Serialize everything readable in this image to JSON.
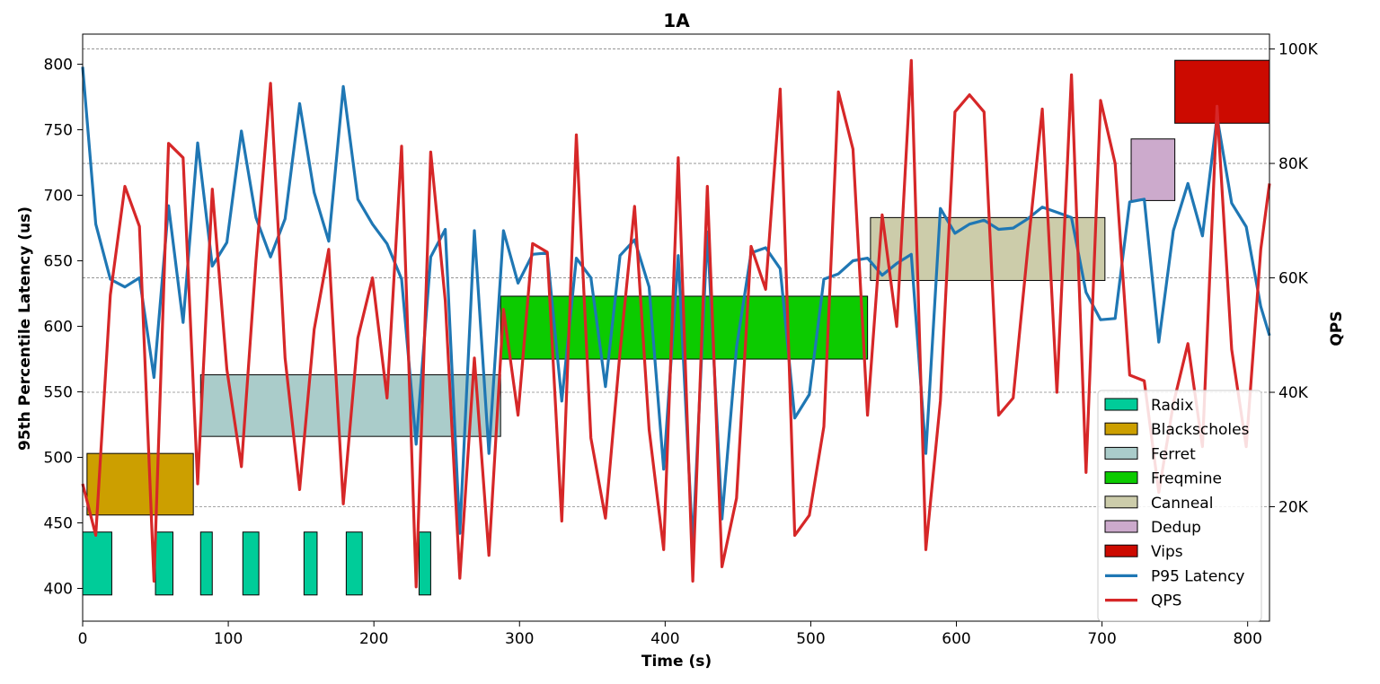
{
  "chart_data": {
    "type": "line",
    "title": "1A",
    "xlabel": "Time (s)",
    "ylabel": "95th Percentile Latency (us)",
    "y2label": "QPS",
    "xlim": [
      0,
      815
    ],
    "ylim": [
      375,
      823
    ],
    "y2lim": [
      0,
      102600
    ],
    "xticks": [
      0,
      100,
      200,
      300,
      400,
      500,
      600,
      700,
      800
    ],
    "yticks": [
      400,
      450,
      500,
      550,
      600,
      650,
      700,
      750,
      800
    ],
    "y2ticks": [
      20000,
      40000,
      60000,
      80000,
      100000
    ],
    "y2tick_labels": [
      "20K",
      "40K",
      "60K",
      "80K",
      "100K"
    ],
    "grid": "horizontal-dashed",
    "legend_position": "lower-right",
    "jobs": [
      {
        "name": "Radix",
        "color": "#00cc99",
        "intervals": [
          [
            0,
            20
          ],
          [
            50,
            62
          ],
          [
            81,
            89
          ],
          [
            110,
            121
          ],
          [
            152,
            161
          ],
          [
            181,
            192
          ],
          [
            231,
            239
          ]
        ],
        "y": [
          395,
          443
        ]
      },
      {
        "name": "Blackscholes",
        "color": "#cc9f00",
        "intervals": [
          [
            3,
            76
          ]
        ],
        "y": [
          456,
          503
        ]
      },
      {
        "name": "Ferret",
        "color": "#aaccca",
        "intervals": [
          [
            81,
            287
          ]
        ],
        "y": [
          516,
          563
        ]
      },
      {
        "name": "Freqmine",
        "color": "#0ccb00",
        "intervals": [
          [
            287,
            539
          ]
        ],
        "y": [
          575,
          623
        ]
      },
      {
        "name": "Canneal",
        "color": "#ccccaa",
        "intervals": [
          [
            541,
            702
          ]
        ],
        "y": [
          635,
          683
        ]
      },
      {
        "name": "Dedup",
        "color": "#ccaacc",
        "intervals": [
          [
            720,
            750
          ]
        ],
        "y": [
          696,
          743
        ]
      },
      {
        "name": "Vips",
        "color": "#cc0a00",
        "intervals": [
          [
            750,
            815
          ]
        ],
        "y": [
          755,
          803
        ]
      }
    ],
    "series": [
      {
        "name": "P95 Latency",
        "axis": "left",
        "color": "#1f77b4",
        "x": [
          0,
          9,
          19,
          29,
          39,
          49,
          59,
          69,
          79,
          89,
          99,
          109,
          119,
          129,
          139,
          149,
          159,
          169,
          179,
          189,
          199,
          209,
          219,
          229,
          239,
          249,
          259,
          269,
          279,
          289,
          299,
          309,
          319,
          329,
          339,
          349,
          359,
          369,
          379,
          389,
          399,
          409,
          419,
          429,
          439,
          449,
          459,
          469,
          479,
          489,
          499,
          509,
          519,
          529,
          539,
          549,
          559,
          569,
          579,
          589,
          599,
          609,
          619,
          629,
          639,
          649,
          659,
          669,
          679,
          689,
          699,
          709,
          719,
          729,
          739,
          749,
          759,
          769,
          779,
          789,
          799,
          809,
          815
        ],
        "values": [
          798,
          678,
          636,
          630,
          637,
          561,
          692,
          603,
          740,
          646,
          664,
          749,
          683,
          653,
          682,
          770,
          702,
          665,
          783,
          697,
          678,
          663,
          636,
          510,
          653,
          674,
          442,
          673,
          503,
          673,
          633,
          655,
          656,
          543,
          652,
          637,
          554,
          654,
          666,
          630,
          491,
          654,
          432,
          672,
          453,
          584,
          656,
          660,
          644,
          530,
          548,
          636,
          640,
          650,
          652,
          639,
          648,
          655,
          503,
          690,
          671,
          678,
          681,
          674,
          675,
          682,
          691,
          687,
          683,
          626,
          605,
          606,
          695,
          697,
          588,
          673,
          709,
          669,
          760,
          694,
          676,
          615,
          593
        ]
      },
      {
        "name": "QPS",
        "axis": "right",
        "color": "#d62728",
        "x": [
          0,
          9,
          19,
          29,
          39,
          49,
          59,
          69,
          79,
          89,
          99,
          109,
          119,
          129,
          139,
          149,
          159,
          169,
          179,
          189,
          199,
          209,
          219,
          229,
          239,
          249,
          259,
          269,
          279,
          289,
          299,
          309,
          319,
          329,
          339,
          349,
          359,
          369,
          379,
          389,
          399,
          409,
          419,
          429,
          439,
          449,
          459,
          469,
          479,
          489,
          499,
          509,
          519,
          529,
          539,
          549,
          559,
          569,
          579,
          589,
          599,
          609,
          619,
          629,
          639,
          649,
          659,
          669,
          679,
          689,
          699,
          709,
          719,
          729,
          739,
          749,
          759,
          769,
          779,
          789,
          799,
          809,
          815
        ],
        "values": [
          24000,
          15000,
          57000,
          76000,
          69000,
          7000,
          83500,
          81000,
          24000,
          75500,
          44000,
          27000,
          63000,
          94000,
          46000,
          23000,
          51000,
          65000,
          20500,
          49500,
          60000,
          39000,
          83000,
          6000,
          82000,
          56000,
          7500,
          46000,
          11500,
          54500,
          36000,
          66000,
          64500,
          17500,
          85000,
          32000,
          18000,
          47000,
          72500,
          33500,
          12500,
          81000,
          7000,
          76000,
          9500,
          21500,
          65500,
          58000,
          93000,
          15000,
          18500,
          34000,
          92500,
          82500,
          36000,
          71000,
          51500,
          98000,
          12500,
          38500,
          89000,
          92000,
          89000,
          36000,
          39000,
          65000,
          89500,
          40000,
          95500,
          26000,
          91000,
          80000,
          43000,
          42000,
          22500,
          38000,
          48500,
          30500,
          90000,
          47500,
          30500,
          65000,
          76500
        ]
      }
    ],
    "legend": [
      {
        "label": "Radix",
        "kind": "patch",
        "color": "#00cc99"
      },
      {
        "label": "Blackscholes",
        "kind": "patch",
        "color": "#cc9f00"
      },
      {
        "label": "Ferret",
        "kind": "patch",
        "color": "#aaccca"
      },
      {
        "label": "Freqmine",
        "kind": "patch",
        "color": "#0ccb00"
      },
      {
        "label": "Canneal",
        "kind": "patch",
        "color": "#ccccaa"
      },
      {
        "label": "Dedup",
        "kind": "patch",
        "color": "#ccaacc"
      },
      {
        "label": "Vips",
        "kind": "patch",
        "color": "#cc0a00"
      },
      {
        "label": "P95 Latency",
        "kind": "line",
        "color": "#1f77b4"
      },
      {
        "label": "QPS",
        "kind": "line",
        "color": "#d62728"
      }
    ]
  }
}
